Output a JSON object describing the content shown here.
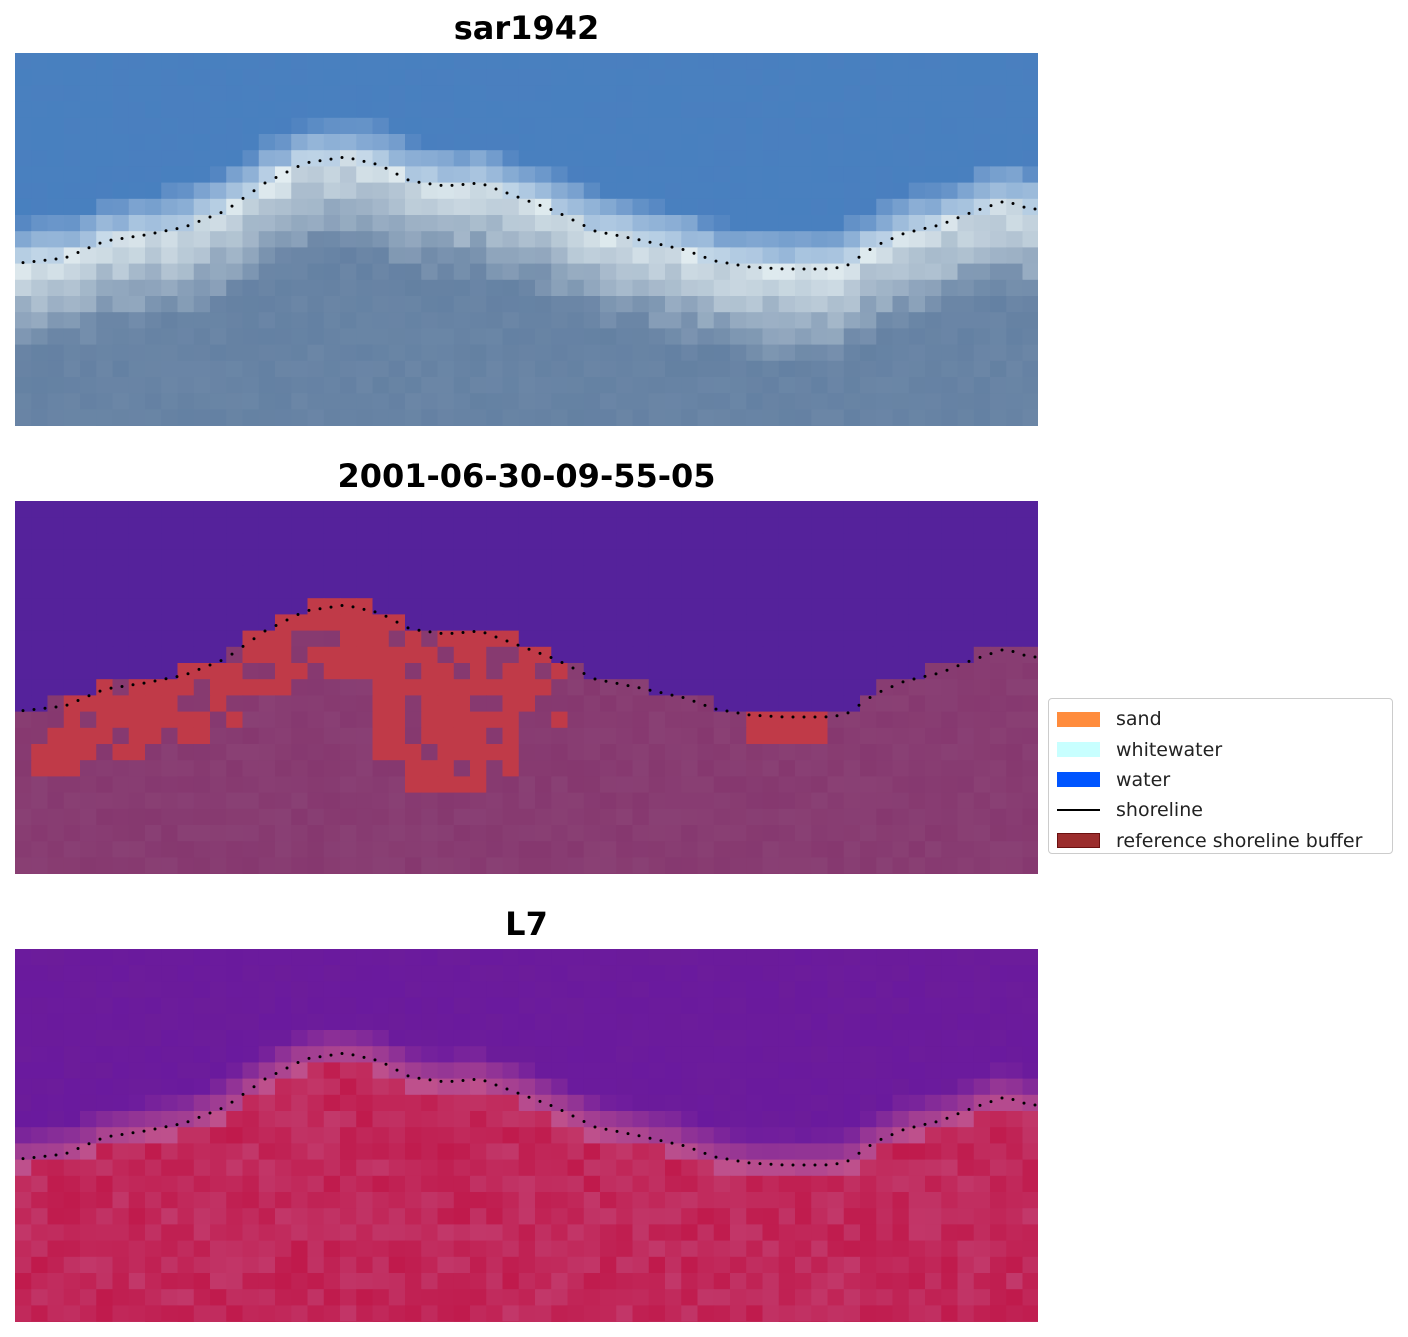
{
  "panels": [
    {
      "title": "sar1942",
      "kind": "rgb"
    },
    {
      "title": "2001-06-30-09-55-05",
      "kind": "classified"
    },
    {
      "title": "L7",
      "kind": "falsecolor"
    }
  ],
  "legend": {
    "items": [
      {
        "label": "sand",
        "color": "#ff8c3d",
        "type": "patch"
      },
      {
        "label": "whitewater",
        "color": "#c8ffff",
        "type": "patch"
      },
      {
        "label": "water",
        "color": "#0055ff",
        "type": "patch"
      },
      {
        "label": "shoreline",
        "color": "#000000",
        "type": "line"
      },
      {
        "label": "reference shoreline buffer",
        "color": "#9b2d2d",
        "edge": "#6b1010",
        "type": "patch"
      }
    ]
  },
  "colors": {
    "rgb_sky": "#4a7fbf",
    "rgb_white": "#e8f2f4",
    "rgb_land": "#6b86a6",
    "class_water": "#55229b",
    "class_buffer": "#c03a48",
    "class_land": "#86386f",
    "false_top": "#6a1a9e",
    "false_land": "#c01a4c",
    "shoreline_dots": "#000000"
  }
}
